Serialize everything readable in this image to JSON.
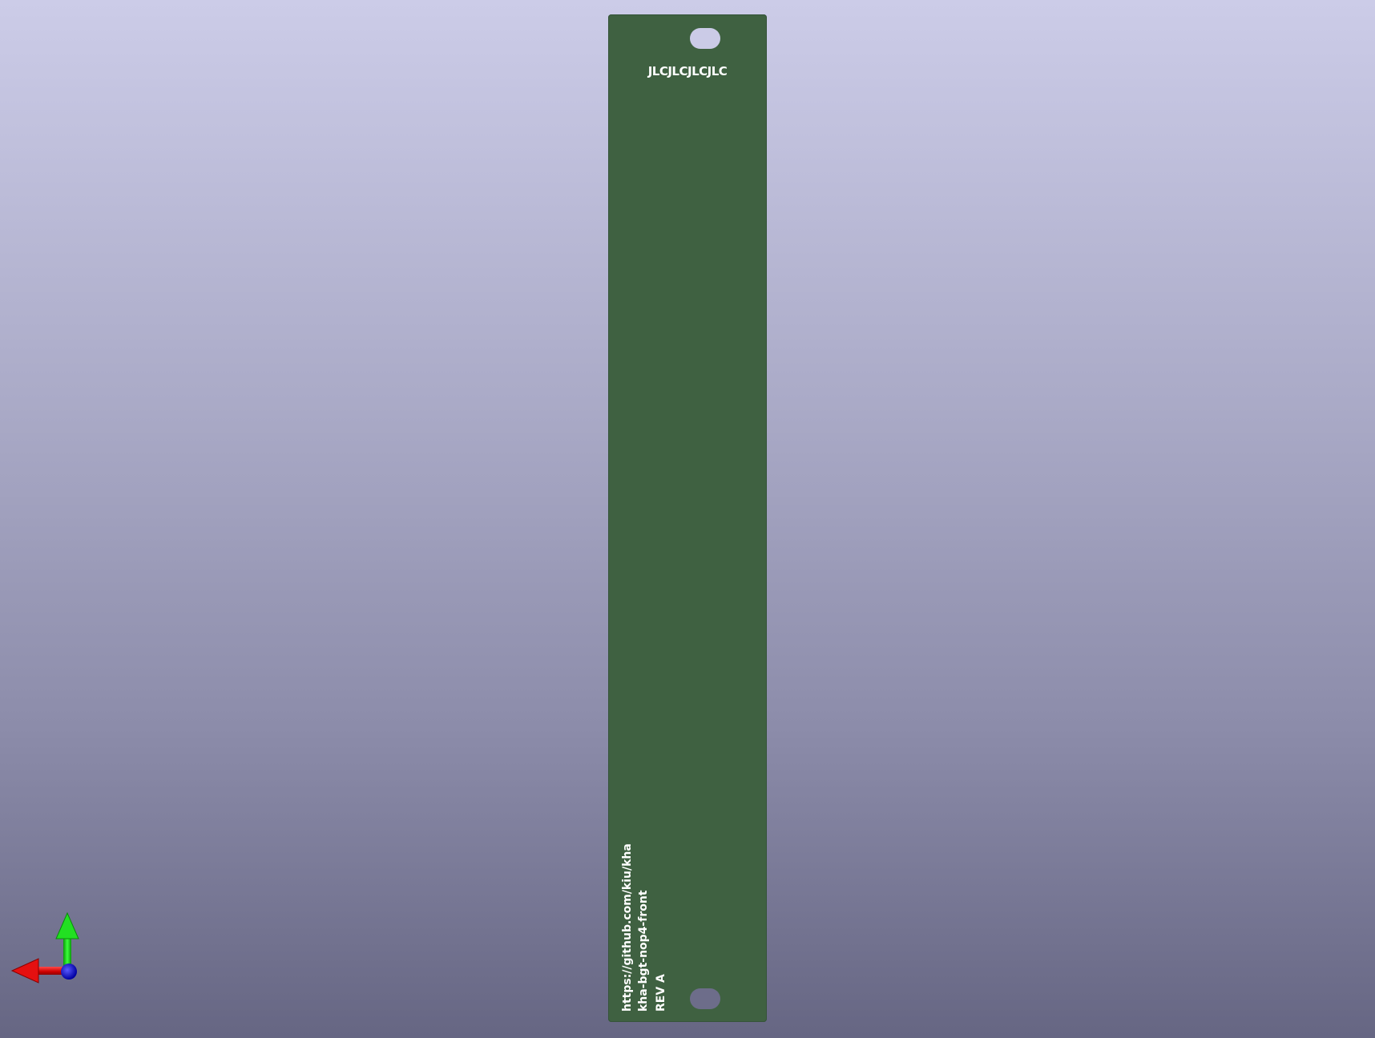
{
  "board": {
    "top_label": "JLCJLCJLCJLC",
    "silk_lines": [
      "https://github.com/kiu/kha",
      "kha-bgt-nop4-front",
      "REV A"
    ],
    "colors": {
      "soldermask": "#3f6141",
      "silkscreen": "#ffffff"
    }
  },
  "axes_gizmo": {
    "x_axis_color": "#e01010",
    "y_axis_color": "#10d010",
    "z_axis_color": "#1010d0"
  }
}
